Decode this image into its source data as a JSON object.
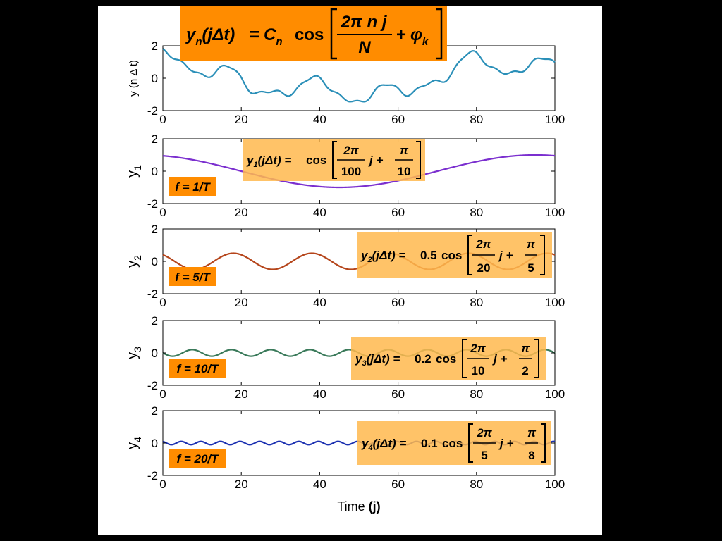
{
  "chart_data": [
    {
      "type": "line",
      "ylabel": "y (n Δ t)",
      "xlim": [
        0,
        100
      ],
      "ylim": [
        -2,
        2
      ],
      "xticks": [
        "0",
        "20",
        "40",
        "60",
        "80",
        "100"
      ],
      "yticks": [
        "2",
        "0",
        "-2"
      ],
      "color": "#2a8fb8",
      "series": [
        {
          "kind": "sum",
          "x": [
            0,
            100
          ]
        }
      ],
      "equation": {
        "lhs_main": "y",
        "lhs_sub": "n",
        "lhs_arg": "(jΔt)",
        "coef_main": "C",
        "coef_sub": "n",
        "func": "cos",
        "num": "2π  n j",
        "den": "N",
        "plus": "+",
        "phase_main": "φ",
        "phase_sub": "k"
      }
    },
    {
      "type": "line",
      "ylabel_main": "y",
      "ylabel_sub": "1",
      "xlim": [
        0,
        100
      ],
      "ylim": [
        -2,
        2
      ],
      "xticks": [
        "0",
        "20",
        "40",
        "60",
        "80",
        "100"
      ],
      "yticks": [
        "2",
        "0",
        "-2"
      ],
      "color": "#7b2fcf",
      "series": [
        {
          "kind": "cosine",
          "amplitude": 1,
          "period": 100,
          "phase": 0.31416
        }
      ],
      "freq_label": "f = 1/T",
      "equation": {
        "lhs_main": "y",
        "lhs_sub": "1",
        "lhs_arg": "(jΔt) =",
        "coef": "",
        "func": "cos",
        "num": "2π",
        "den": "100",
        "mid": "j +",
        "pnum": "π",
        "pden": "10"
      }
    },
    {
      "type": "line",
      "ylabel_main": "y",
      "ylabel_sub": "2",
      "xlim": [
        0,
        100
      ],
      "ylim": [
        -2,
        2
      ],
      "xticks": [
        "0",
        "20",
        "40",
        "60",
        "80",
        "100"
      ],
      "yticks": [
        "2",
        "0",
        "-2"
      ],
      "color": "#b5451b",
      "series": [
        {
          "kind": "cosine",
          "amplitude": 0.5,
          "period": 20,
          "phase": 0.62832
        }
      ],
      "freq_label": "f = 5/T",
      "equation": {
        "lhs_main": "y",
        "lhs_sub": "2",
        "lhs_arg": "(jΔt) =",
        "coef": "0.5",
        "func": "cos",
        "num": "2π",
        "den": "20",
        "mid": "j +",
        "pnum": "π",
        "pden": "5"
      }
    },
    {
      "type": "line",
      "ylabel_main": "y",
      "ylabel_sub": "3",
      "xlim": [
        0,
        100
      ],
      "ylim": [
        -2,
        2
      ],
      "xticks": [
        "0",
        "20",
        "40",
        "60",
        "80",
        "100"
      ],
      "yticks": [
        "2",
        "0",
        "-2"
      ],
      "color": "#3a7a5a",
      "series": [
        {
          "kind": "cosine",
          "amplitude": 0.2,
          "period": 10,
          "phase": 1.5708
        }
      ],
      "freq_label": "f = 10/T",
      "equation": {
        "lhs_main": "y",
        "lhs_sub": "3",
        "lhs_arg": "(jΔt) =",
        "coef": "0.2",
        "func": "cos",
        "num": "2π",
        "den": "10",
        "mid": "j +",
        "pnum": "π",
        "pden": "2"
      }
    },
    {
      "type": "line",
      "ylabel_main": "y",
      "ylabel_sub": "4",
      "xlim": [
        0,
        100
      ],
      "ylim": [
        -2,
        2
      ],
      "xticks": [
        "0",
        "20",
        "40",
        "60",
        "80",
        "100"
      ],
      "yticks": [
        "2",
        "0",
        "-2"
      ],
      "xlabel_main": "Time",
      "xlabel_suffix": "(j)",
      "color": "#1a2fb0",
      "series": [
        {
          "kind": "cosine",
          "amplitude": 0.1,
          "period": 5,
          "phase": 0.3927
        }
      ],
      "freq_label": "f = 20/T",
      "equation": {
        "lhs_main": "y",
        "lhs_sub": "4",
        "lhs_arg": "(jΔt) =",
        "coef": "0.1",
        "func": "cos",
        "num": "2π",
        "den": "5",
        "mid": "j +",
        "pnum": "π",
        "pden": "8"
      }
    }
  ]
}
